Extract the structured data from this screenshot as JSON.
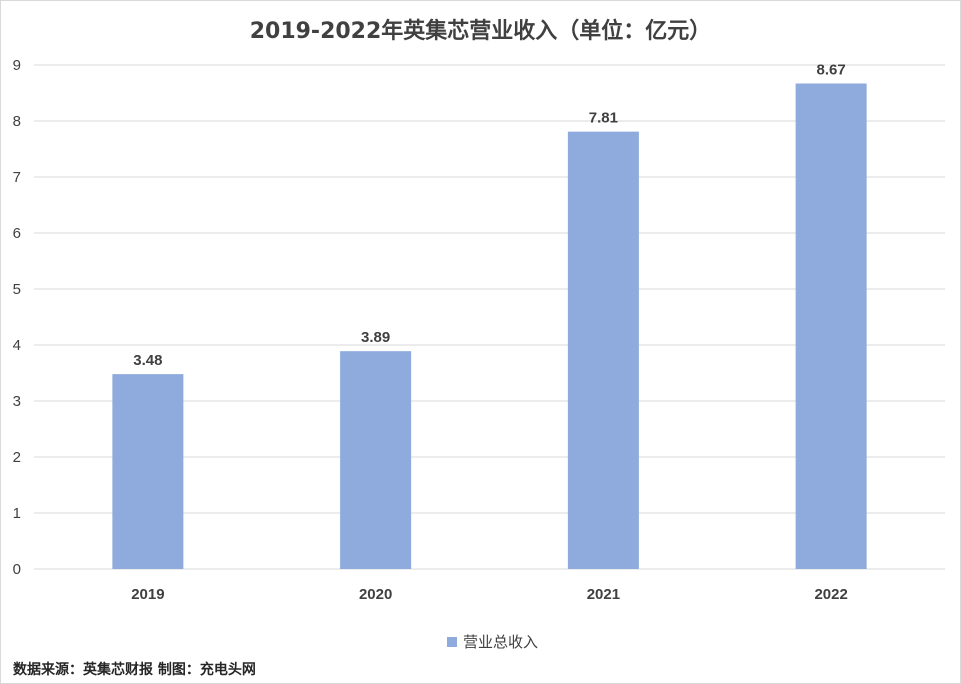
{
  "chart_data": {
    "type": "bar",
    "title": "2019-2022年英集芯营业收入（单位：亿元）",
    "categories": [
      "2019",
      "2020",
      "2021",
      "2022"
    ],
    "series": [
      {
        "name": "营业总收入",
        "values": [
          3.48,
          3.89,
          7.81,
          8.67
        ]
      }
    ],
    "data_labels": [
      "3.48",
      "3.89",
      "7.81",
      "8.67"
    ],
    "ylim": [
      0,
      9
    ],
    "yticks": [
      "0",
      "1",
      "2",
      "3",
      "4",
      "5",
      "6",
      "7",
      "8",
      "9"
    ],
    "grid": true,
    "legend_position": "bottom",
    "bar_color": "#8faadc",
    "grid_color": "#d9d9d9"
  },
  "footer": {
    "source": "数据来源：英集芯财报  制图：充电头网"
  }
}
